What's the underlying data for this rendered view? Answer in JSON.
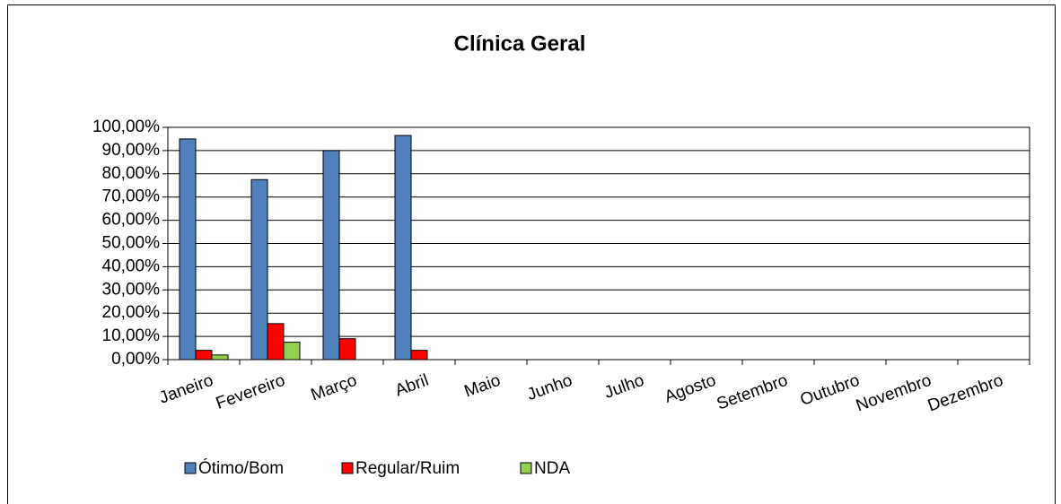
{
  "chart_data": {
    "type": "bar",
    "title": "Clínica Geral",
    "categories": [
      "Janeiro",
      "Fevereiro",
      "Março",
      "Abril",
      "Maio",
      "Junho",
      "Julho",
      "Agosto",
      "Setembro",
      "Outubro",
      "Novembro",
      "Dezembro"
    ],
    "series": [
      {
        "name": "Ótimo/Bom",
        "color": "#4f81bd",
        "values": [
          95,
          77.5,
          90,
          96.5,
          null,
          null,
          null,
          null,
          null,
          null,
          null,
          null
        ]
      },
      {
        "name": "Regular/Ruim",
        "color": "#ff0000",
        "values": [
          4,
          15.5,
          9,
          4,
          null,
          null,
          null,
          null,
          null,
          null,
          null,
          null
        ]
      },
      {
        "name": "NDA",
        "color": "#92d050",
        "values": [
          2,
          7.5,
          0,
          0,
          null,
          null,
          null,
          null,
          null,
          null,
          null,
          null
        ]
      }
    ],
    "ylim": [
      0,
      100
    ],
    "yticks": [
      {
        "value": 0,
        "label": "0,00%"
      },
      {
        "value": 10,
        "label": "10,00%"
      },
      {
        "value": 20,
        "label": "20,00%"
      },
      {
        "value": 30,
        "label": "30,00%"
      },
      {
        "value": 40,
        "label": "40,00%"
      },
      {
        "value": 50,
        "label": "50,00%"
      },
      {
        "value": 60,
        "label": "60,00%"
      },
      {
        "value": 70,
        "label": "70,00%"
      },
      {
        "value": 80,
        "label": "80,00%"
      },
      {
        "value": 90,
        "label": "90,00%"
      },
      {
        "value": 100,
        "label": "100,00%"
      }
    ],
    "grid": true,
    "legend": "bottom"
  }
}
